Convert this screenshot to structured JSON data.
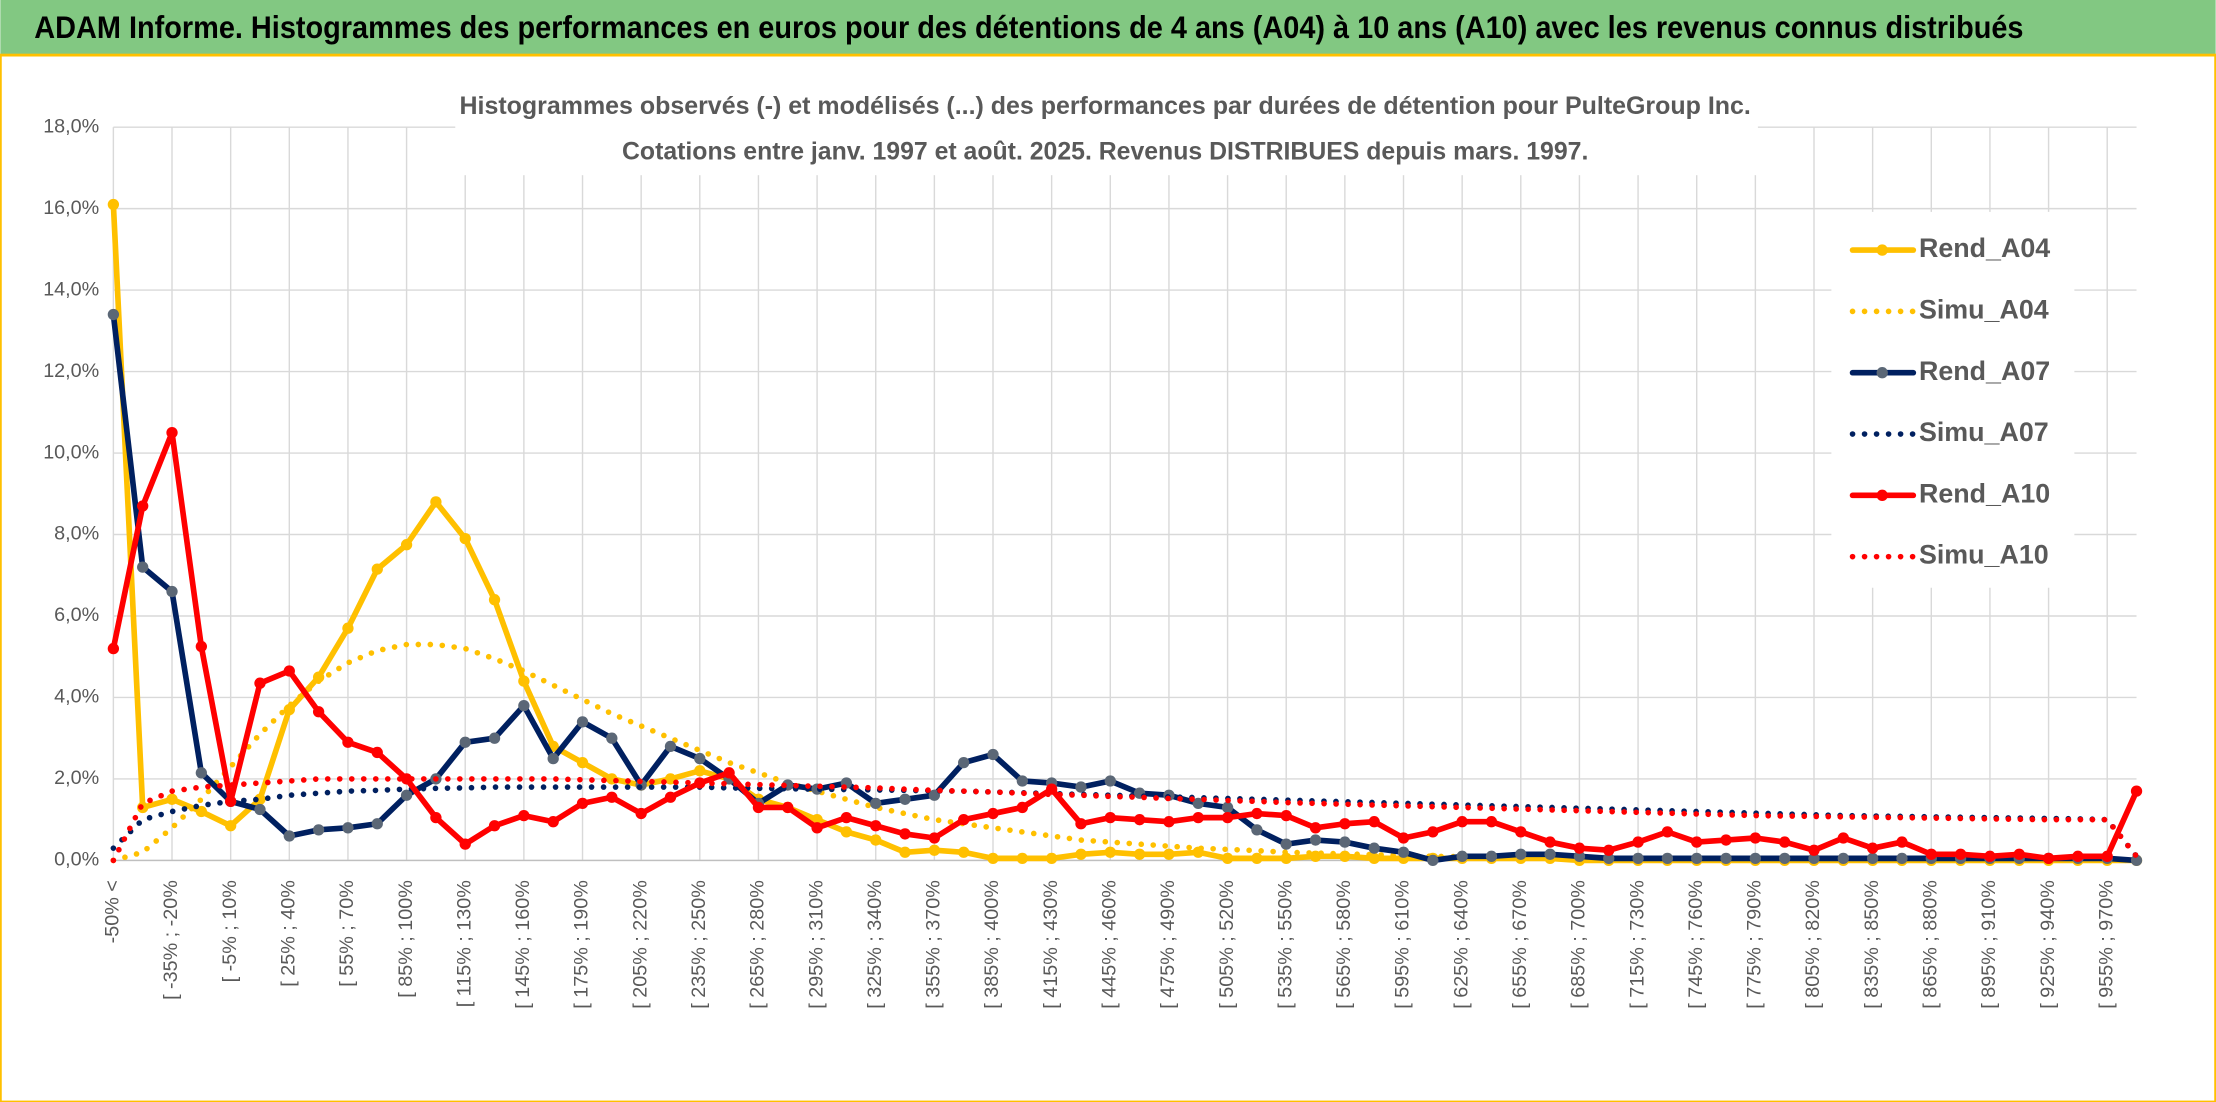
{
  "chart_data": {
    "type": "line",
    "title": "ADAM Informe. Histogrammes des performances en euros pour des détentions de 4 ans (A04) à 10 ans (A10) avec les revenus connus distribués",
    "subtitle": [
      "Histogrammes observés (-) et modélisés (...) des performances par durées de détention pour PulteGroup Inc.",
      "Cotations entre janv. 1997 et août. 2025. Revenus DISTRIBUES depuis mars. 1997."
    ],
    "categories": [
      "-50% <",
      null,
      "[ -35% ; -20%",
      null,
      "[ -5% ; 10%",
      null,
      "[ 25% ; 40%",
      null,
      "[ 55% ; 70%",
      null,
      "[ 85% ; 100%",
      null,
      "[ 115% ; 130%",
      null,
      "[ 145% ; 160%",
      null,
      "[ 175% ; 190%",
      null,
      "[ 205% ; 220%",
      null,
      "[ 235% ; 250%",
      null,
      "[ 265% ; 280%",
      null,
      "[ 295% ; 310%",
      null,
      "[ 325% ; 340%",
      null,
      "[ 355% ; 370%",
      null,
      "[ 385% ; 400%",
      null,
      "[ 415% ; 430%",
      null,
      "[ 445% ; 460%",
      null,
      "[ 475% ; 490%",
      null,
      "[ 505% ; 520%",
      null,
      "[ 535% ; 550%",
      null,
      "[ 565% ; 580%",
      null,
      "[ 595% ; 610%",
      null,
      "[ 625% ; 640%",
      null,
      "[ 655% ; 670%",
      null,
      "[ 685% ; 700%",
      null,
      "[ 715% ; 730%",
      null,
      "[ 745% ; 760%",
      null,
      "[ 775% ; 790%",
      null,
      "[ 805% ; 820%",
      null,
      "[ 835% ; 850%",
      null,
      "[ 865% ; 880%",
      null,
      "[ 895% ; 910%",
      null,
      "[ 925% ; 940%",
      null,
      "[ 955% ; 970%",
      null
    ],
    "series": [
      {
        "name": "Rend_A04",
        "color": "#ffc000",
        "style": "solid",
        "values": [
          16.1,
          1.3,
          1.5,
          1.2,
          0.85,
          1.5,
          3.7,
          4.5,
          5.7,
          7.15,
          7.75,
          8.8,
          7.9,
          6.4,
          4.4,
          2.8,
          2.4,
          2.0,
          1.85,
          2.0,
          2.2,
          2.0,
          1.5,
          1.3,
          1.0,
          0.7,
          0.5,
          0.2,
          0.25,
          0.2,
          0.05,
          0.05,
          0.05,
          0.15,
          0.2,
          0.15,
          0.15,
          0.2,
          0.05,
          0.05,
          0.05,
          0.1,
          0.1,
          0.05,
          0.05,
          0.05,
          0.05,
          0.05,
          0.05,
          0.05,
          0,
          0,
          0,
          0,
          0,
          0,
          0,
          0,
          0,
          0,
          0,
          0,
          0,
          0,
          0,
          0,
          0,
          0,
          0,
          0
        ]
      },
      {
        "name": "Simu_A04",
        "color": "#ffc000",
        "style": "dotted",
        "values": [
          0.0,
          0.2,
          0.8,
          1.5,
          2.3,
          3.1,
          3.8,
          4.4,
          4.85,
          5.15,
          5.3,
          5.3,
          5.2,
          4.95,
          4.65,
          4.3,
          3.95,
          3.6,
          3.3,
          3.0,
          2.7,
          2.4,
          2.15,
          1.9,
          1.7,
          1.5,
          1.3,
          1.15,
          1.0,
          0.9,
          0.8,
          0.7,
          0.6,
          0.5,
          0.45,
          0.4,
          0.35,
          0.3,
          0.27,
          0.24,
          0.2,
          0.18,
          0.16,
          0.14,
          0.12,
          0.1,
          0.09,
          0.08,
          0.07,
          0.06,
          0.05,
          0.05,
          0.04,
          0.04,
          0.03,
          0.03,
          0.03,
          0.02,
          0.02,
          0.02,
          0.02,
          0.01,
          0.01,
          0.01,
          0.01,
          0.01,
          0.01,
          0.01,
          0.01,
          0.0
        ]
      },
      {
        "name": "Rend_A07",
        "color": "#002060",
        "marker_color": "#5b6776",
        "style": "solid",
        "values": [
          13.4,
          7.2,
          6.6,
          2.15,
          1.45,
          1.25,
          0.6,
          0.75,
          0.8,
          0.9,
          1.6,
          2.0,
          2.9,
          3.0,
          3.8,
          2.5,
          3.4,
          3.0,
          1.85,
          2.8,
          2.5,
          2.0,
          1.4,
          1.85,
          1.75,
          1.9,
          1.4,
          1.5,
          1.6,
          2.4,
          2.6,
          1.95,
          1.9,
          1.8,
          1.95,
          1.65,
          1.6,
          1.4,
          1.3,
          0.75,
          0.4,
          0.5,
          0.45,
          0.3,
          0.2,
          0.0,
          0.1,
          0.1,
          0.15,
          0.15,
          0.1,
          0.05,
          0.05,
          0.05,
          0.05,
          0.05,
          0.05,
          0.05,
          0.05,
          0.05,
          0.05,
          0.05,
          0.05,
          0.05,
          0.05,
          0.05,
          0.05,
          0.05,
          0.05,
          0.0
        ]
      },
      {
        "name": "Simu_A07",
        "color": "#002060",
        "style": "dotted",
        "values": [
          0.3,
          1.0,
          1.2,
          1.35,
          1.45,
          1.5,
          1.6,
          1.65,
          1.7,
          1.72,
          1.75,
          1.77,
          1.78,
          1.8,
          1.8,
          1.8,
          1.8,
          1.8,
          1.8,
          1.8,
          1.8,
          1.78,
          1.77,
          1.76,
          1.75,
          1.74,
          1.73,
          1.72,
          1.71,
          1.7,
          1.68,
          1.66,
          1.64,
          1.62,
          1.6,
          1.58,
          1.56,
          1.54,
          1.52,
          1.5,
          1.48,
          1.46,
          1.44,
          1.42,
          1.4,
          1.38,
          1.36,
          1.34,
          1.32,
          1.3,
          1.28,
          1.26,
          1.24,
          1.22,
          1.2,
          1.18,
          1.16,
          1.14,
          1.12,
          1.1,
          1.09,
          1.08,
          1.07,
          1.06,
          1.05,
          1.04,
          1.03,
          1.02,
          1.0,
          0.1
        ]
      },
      {
        "name": "Rend_A10",
        "color": "#ff0000",
        "style": "solid",
        "values": [
          5.2,
          8.7,
          10.5,
          5.25,
          1.45,
          4.35,
          4.65,
          3.65,
          2.9,
          2.65,
          2.0,
          1.05,
          0.4,
          0.85,
          1.1,
          0.95,
          1.4,
          1.55,
          1.15,
          1.55,
          1.9,
          2.15,
          1.3,
          1.3,
          0.8,
          1.05,
          0.85,
          0.65,
          0.55,
          1.0,
          1.15,
          1.3,
          1.75,
          0.9,
          1.05,
          1.0,
          0.95,
          1.05,
          1.05,
          1.15,
          1.1,
          0.8,
          0.9,
          0.95,
          0.55,
          0.7,
          0.95,
          0.95,
          0.7,
          0.45,
          0.3,
          0.25,
          0.45,
          0.7,
          0.45,
          0.5,
          0.55,
          0.45,
          0.25,
          0.55,
          0.3,
          0.45,
          0.15,
          0.15,
          0.1,
          0.15,
          0.05,
          0.1,
          0.1,
          1.7
        ]
      },
      {
        "name": "Simu_A10",
        "color": "#ff0000",
        "style": "dotted",
        "values": [
          0.0,
          1.4,
          1.7,
          1.8,
          1.85,
          1.9,
          1.95,
          2.0,
          2.0,
          2.0,
          2.0,
          2.0,
          2.0,
          2.0,
          2.0,
          2.0,
          1.98,
          1.96,
          1.94,
          1.92,
          1.9,
          1.88,
          1.86,
          1.84,
          1.82,
          1.8,
          1.78,
          1.75,
          1.72,
          1.7,
          1.68,
          1.65,
          1.62,
          1.6,
          1.57,
          1.55,
          1.52,
          1.5,
          1.47,
          1.45,
          1.42,
          1.4,
          1.38,
          1.36,
          1.34,
          1.32,
          1.3,
          1.28,
          1.26,
          1.24,
          1.22,
          1.2,
          1.18,
          1.16,
          1.14,
          1.12,
          1.1,
          1.09,
          1.08,
          1.07,
          1.06,
          1.05,
          1.04,
          1.03,
          1.02,
          1.01,
          1.0,
          1.0,
          1.0,
          0.1
        ]
      }
    ],
    "ylim": [
      0,
      18
    ],
    "yticks": [
      {
        "value": 0,
        "label": "0,0%"
      },
      {
        "value": 2,
        "label": "2,0%"
      },
      {
        "value": 4,
        "label": "4,0%"
      },
      {
        "value": 6,
        "label": "6,0%"
      },
      {
        "value": 8,
        "label": "8,0%"
      },
      {
        "value": 10,
        "label": "10,0%"
      },
      {
        "value": 12,
        "label": "12,0%"
      },
      {
        "value": 14,
        "label": "14,0%"
      },
      {
        "value": 16,
        "label": "16,0%"
      },
      {
        "value": 18,
        "label": "18,0%"
      }
    ],
    "grid": true,
    "legend": "right"
  }
}
